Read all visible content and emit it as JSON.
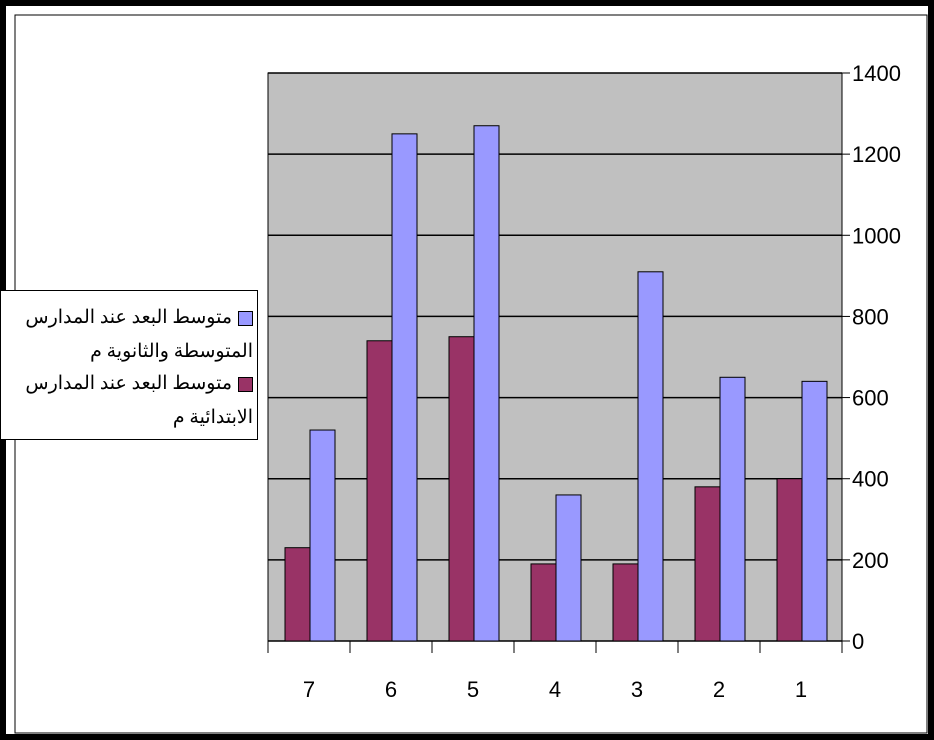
{
  "chart_data": {
    "type": "bar",
    "categories": [
      "7",
      "6",
      "5",
      "4",
      "3",
      "2",
      "1"
    ],
    "series": [
      {
        "name": "متوسط البعد عند المدارس الابتدائية م",
        "color": "#993366",
        "values": [
          230,
          740,
          750,
          190,
          190,
          380,
          400
        ]
      },
      {
        "name": "متوسط البعد عند المدارس المتوسطة والثانوية م",
        "color": "#9999ff",
        "values": [
          520,
          1250,
          1270,
          360,
          910,
          650,
          640
        ]
      }
    ],
    "y_ticks": [
      "0",
      "200",
      "400",
      "600",
      "800",
      "1000",
      "1200",
      "1400"
    ],
    "ylim": [
      0,
      1400
    ],
    "y_axis_side": "right",
    "grid": true,
    "plot_background": "#c0c0c0",
    "legend_position": "left",
    "legend": [
      {
        "line1": "متوسط البعد عند المدارس",
        "line2": "المتوسطة والثانوية م",
        "color": "#9999ff"
      },
      {
        "line1": "متوسط البعد عند المدارس",
        "line2": "الابتدائية م",
        "color": "#993366"
      }
    ]
  }
}
